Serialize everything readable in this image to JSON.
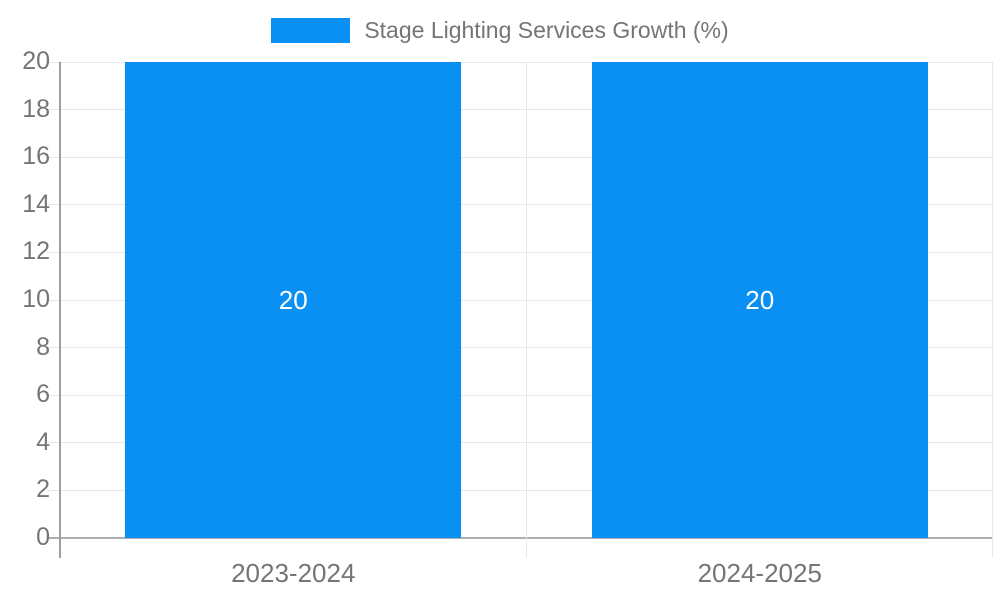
{
  "chart_data": {
    "type": "bar",
    "title": "Stage Lighting Services Growth (%)",
    "categories": [
      "2023-2024",
      "2024-2025"
    ],
    "values": [
      20,
      20
    ],
    "value_labels": [
      "20",
      "20"
    ],
    "xlabel": "",
    "ylabel": "",
    "ylim": [
      0,
      20
    ],
    "ytick_step": 2,
    "ytick_labels": [
      "0",
      "2",
      "4",
      "6",
      "8",
      "10",
      "12",
      "14",
      "16",
      "18",
      "20"
    ],
    "grid": true,
    "legend_position": "top-center",
    "legend_entries": [
      "Stage Lighting Services Growth (%)"
    ],
    "colors": {
      "bar": "#0a8ff2",
      "gridline": "#e7e7e7",
      "baseline": "#adadad",
      "axis_line": "#9e9e9e",
      "tick_text": "#757575",
      "value_text": "#ffffff",
      "background": "#ffffff"
    }
  }
}
